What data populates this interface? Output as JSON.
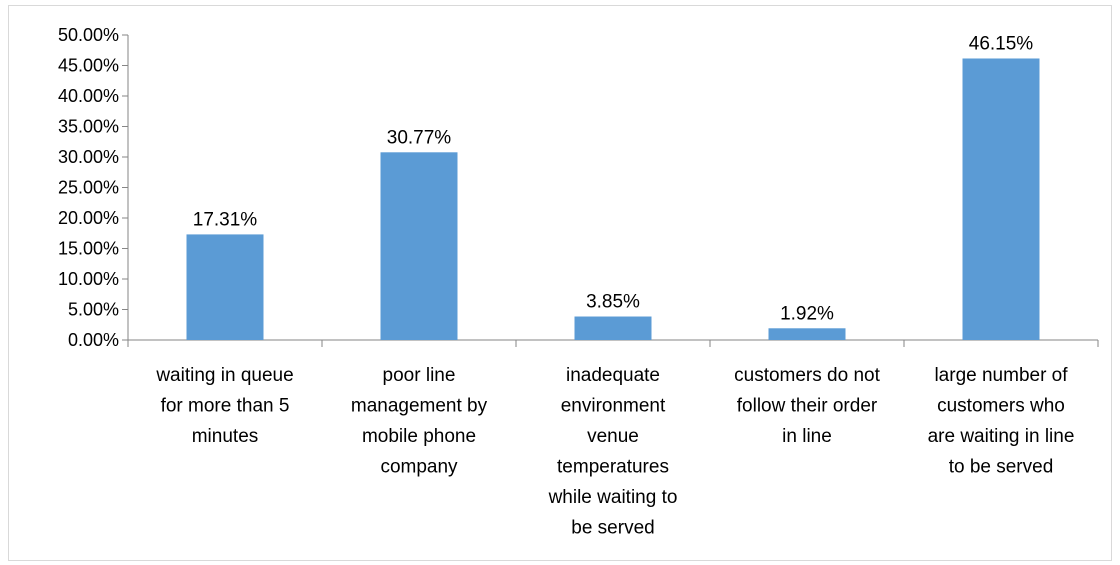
{
  "chart_data": {
    "type": "bar",
    "categories": [
      [
        "waiting in queue",
        "for more than 5",
        "minutes"
      ],
      [
        "poor line",
        "management by",
        "mobile phone",
        "company"
      ],
      [
        "inadequate",
        "environment",
        "venue",
        "temperatures",
        "while waiting to",
        "be served"
      ],
      [
        "customers do not",
        "follow their order",
        "in line"
      ],
      [
        "large number of",
        "customers who",
        "are waiting in line",
        "to be served"
      ]
    ],
    "values": [
      17.31,
      30.77,
      3.85,
      1.92,
      46.15
    ],
    "data_labels": [
      "17.31%",
      "30.77%",
      "3.85%",
      "1.92%",
      "46.15%"
    ],
    "ylim": [
      0,
      50
    ],
    "y_ticks": [
      0,
      5,
      10,
      15,
      20,
      25,
      30,
      35,
      40,
      45,
      50
    ],
    "y_tick_labels": [
      "0.00%",
      "5.00%",
      "10.00%",
      "15.00%",
      "20.00%",
      "25.00%",
      "30.00%",
      "35.00%",
      "40.00%",
      "45.00%",
      "50.00%"
    ],
    "grid": false,
    "legend": "none",
    "bar_color": "#5b9bd5",
    "axis_color": "#868686"
  }
}
